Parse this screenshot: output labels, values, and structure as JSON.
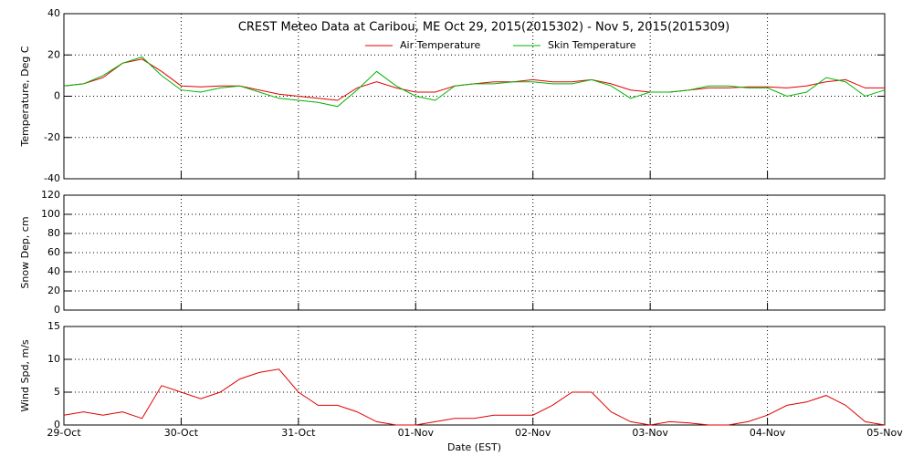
{
  "chart_data": [
    {
      "type": "line",
      "title": "CREST Meteo Data at Caribou, ME   Oct 29, 2015(2015302) - Nov  5, 2015(2015309)",
      "ylabel": "Temperature, Deg C",
      "grid": true,
      "xlim": [
        0,
        168
      ],
      "xticks": [
        0,
        24,
        48,
        72,
        96,
        120,
        144,
        168
      ],
      "ylim": [
        -40,
        40
      ],
      "yticks": [
        -40,
        -20,
        0,
        20,
        40
      ],
      "x": [
        0,
        4,
        8,
        12,
        16,
        20,
        24,
        28,
        32,
        36,
        40,
        44,
        48,
        52,
        56,
        60,
        64,
        68,
        72,
        76,
        80,
        84,
        88,
        92,
        96,
        100,
        104,
        108,
        112,
        116,
        120,
        124,
        128,
        132,
        136,
        140,
        144,
        148,
        152,
        156,
        160,
        164,
        168
      ],
      "series": [
        {
          "name": "Air Temperature",
          "color": "#e00000",
          "values": [
            5,
            6,
            9,
            16,
            18,
            12,
            5,
            4.5,
            5,
            5,
            3,
            1,
            0,
            -1,
            -2,
            4,
            7,
            4,
            2,
            2,
            5,
            6,
            7,
            7,
            8,
            7,
            7,
            8,
            6,
            3,
            2,
            2,
            3,
            4,
            4,
            4.5,
            4.5,
            4,
            5,
            7,
            8,
            4,
            4
          ]
        },
        {
          "name": "Skin Temperature",
          "color": "#00b400",
          "values": [
            5,
            6,
            10,
            16,
            19,
            10,
            3,
            2,
            4,
            5,
            2,
            -1,
            -2,
            -3,
            -5,
            3,
            12,
            5,
            0,
            -2,
            5,
            6,
            6,
            7,
            7,
            6,
            6,
            8,
            5,
            -1,
            2,
            2,
            3,
            5,
            5,
            4,
            4,
            0,
            2,
            9,
            7,
            0,
            3
          ]
        }
      ]
    },
    {
      "type": "line",
      "ylabel": "Snow Dep, cm",
      "grid": true,
      "xlim": [
        0,
        168
      ],
      "xticks": [
        0,
        24,
        48,
        72,
        96,
        120,
        144,
        168
      ],
      "ylim": [
        0,
        120
      ],
      "yticks": [
        0,
        20,
        40,
        60,
        80,
        100,
        120
      ]
    },
    {
      "type": "line",
      "ylabel": "Wind Spd, m/s",
      "xlabel": "Date (EST)",
      "grid": true,
      "xlim": [
        0,
        168
      ],
      "xticks": [
        {
          "value": 0,
          "label": "29-Oct"
        },
        {
          "value": 24,
          "label": "30-Oct"
        },
        {
          "value": 48,
          "label": "31-Oct"
        },
        {
          "value": 72,
          "label": "01-Nov"
        },
        {
          "value": 96,
          "label": "02-Nov"
        },
        {
          "value": 120,
          "label": "03-Nov"
        },
        {
          "value": 144,
          "label": "04-Nov"
        },
        {
          "value": 168,
          "label": "05-Nov"
        }
      ],
      "ylim": [
        0,
        15
      ],
      "yticks": [
        0,
        5,
        10,
        15
      ],
      "x": [
        0,
        4,
        8,
        12,
        16,
        20,
        24,
        28,
        32,
        36,
        40,
        44,
        48,
        52,
        56,
        60,
        64,
        68,
        72,
        76,
        80,
        84,
        88,
        92,
        96,
        100,
        104,
        108,
        112,
        116,
        120,
        124,
        128,
        132,
        136,
        140,
        144,
        148,
        152,
        156,
        160,
        164,
        168
      ],
      "series": [
        {
          "color": "#e00000",
          "values": [
            1.5,
            2,
            1.5,
            2,
            1,
            6,
            5,
            4,
            5,
            7,
            8,
            8.5,
            5,
            3,
            3,
            2,
            0.5,
            0,
            0,
            0.5,
            1,
            1,
            1.5,
            1.5,
            1.5,
            3,
            5,
            5,
            2,
            0.5,
            0,
            0.5,
            0.3,
            0,
            0,
            0.5,
            1.5,
            3,
            3.5,
            4.5,
            3,
            0.5,
            0
          ]
        }
      ]
    }
  ]
}
